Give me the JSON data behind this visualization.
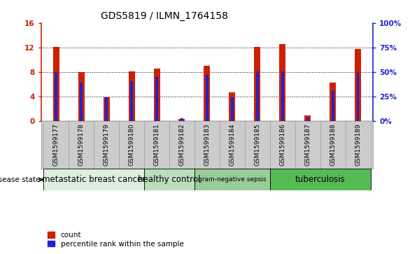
{
  "title": "GDS5819 / ILMN_1764158",
  "samples": [
    "GSM1599177",
    "GSM1599178",
    "GSM1599179",
    "GSM1599180",
    "GSM1599181",
    "GSM1599182",
    "GSM1599183",
    "GSM1599184",
    "GSM1599185",
    "GSM1599186",
    "GSM1599187",
    "GSM1599188",
    "GSM1599189"
  ],
  "count_values": [
    12.1,
    8.0,
    3.9,
    8.1,
    8.5,
    0.3,
    9.0,
    4.7,
    12.1,
    12.5,
    0.9,
    6.3,
    11.7
  ],
  "percentile_values": [
    8.0,
    6.3,
    3.9,
    6.5,
    7.2,
    0.45,
    7.5,
    3.9,
    8.1,
    8.1,
    0.55,
    4.9,
    8.0
  ],
  "bar_color": "#cc2200",
  "percentile_color": "#2222cc",
  "ylim_left": [
    0,
    16
  ],
  "ylim_right": [
    0,
    100
  ],
  "yticks_left": [
    0,
    4,
    8,
    12,
    16
  ],
  "ytick_labels_left": [
    "0",
    "4",
    "8",
    "12",
    "16"
  ],
  "yticks_right": [
    0,
    25,
    50,
    75,
    100
  ],
  "ytick_labels_right": [
    "0%",
    "25%",
    "50%",
    "75%",
    "100%"
  ],
  "dotted_lines": [
    4,
    8,
    12
  ],
  "groups": [
    {
      "label": "metastatic breast cancer",
      "start": 0,
      "end": 4,
      "color": "#ddf0dd"
    },
    {
      "label": "healthy control",
      "start": 4,
      "end": 6,
      "color": "#bbdebb"
    },
    {
      "label": "gram-negative sepsis",
      "start": 6,
      "end": 9,
      "color": "#99cc99"
    },
    {
      "label": "tuberculosis",
      "start": 9,
      "end": 13,
      "color": "#55bb55"
    }
  ],
  "disease_state_label": "disease state",
  "legend_count": "count",
  "legend_percentile": "percentile rank within the sample",
  "bar_width": 0.25,
  "pct_bar_width": 0.1,
  "label_fontsize": 6.5,
  "tick_fontsize": 7.5,
  "title_fontsize": 10
}
